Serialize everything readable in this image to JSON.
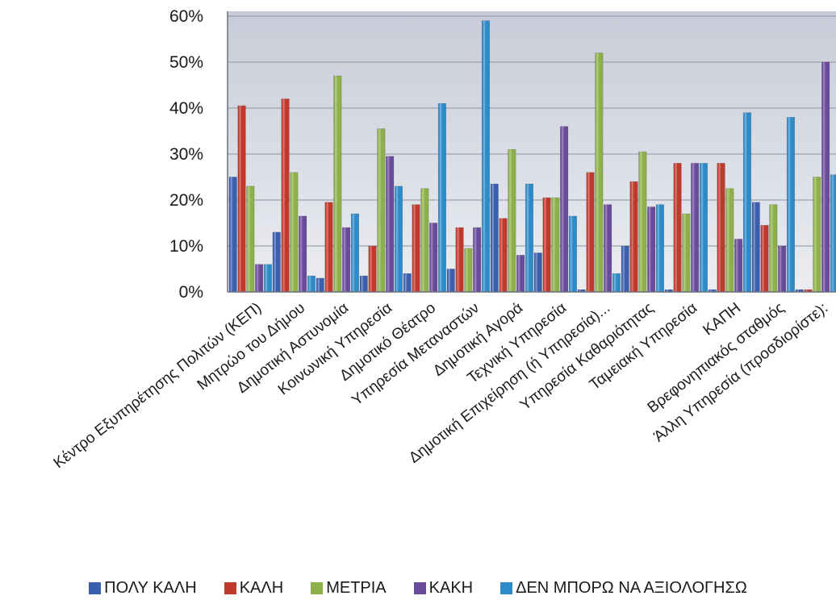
{
  "chart_data": {
    "type": "bar",
    "title": "",
    "xlabel": "",
    "ylabel": "",
    "ylim": [
      0,
      60
    ],
    "yticks": [
      "0%",
      "10%",
      "20%",
      "30%",
      "40%",
      "50%",
      "60%"
    ],
    "grid": true,
    "legend_position": "bottom",
    "categories": [
      "Κέντρο Εξυπηρέτησης Πολιτών (ΚΕΠ)",
      "Μητρώο του Δήμου",
      "Δημοτική Αστυνομία",
      "Κοινωνική Υπηρεσία",
      "Δημοτικό Θέατρο",
      "Υπηρεσία Μεταναστών",
      "Δημοτική Αγορά",
      "Τεχνική Υπηρεσία",
      "Δημοτική Επιχείρηση (ή Υπηρεσία)...",
      "Υπηρεσία Καθαριότητας",
      "Ταμειακή Υπηρεσία",
      "ΚΑΠΗ",
      "Βρεφονηπιακός σταθμός",
      "Άλλη Υπηρεσία (προσδιορίστε):"
    ],
    "series": [
      {
        "name": "ΠΟΛΥ ΚΑΛΗ",
        "color": "#3b5fb0",
        "values": [
          25,
          13,
          3,
          3.5,
          4,
          5,
          23.5,
          8.5,
          0.5,
          10,
          0.5,
          0.5,
          19.5,
          0.5
        ]
      },
      {
        "name": "ΚΑΛΗ",
        "color": "#c0392b",
        "values": [
          40.5,
          42,
          19.5,
          10,
          19,
          14,
          16,
          20.5,
          26,
          24,
          28,
          28,
          14.5,
          0.5
        ]
      },
      {
        "name": "ΜΕΤΡΙΑ",
        "color": "#8db04a",
        "values": [
          23,
          26,
          47,
          35.5,
          22.5,
          9.5,
          31,
          20.5,
          52,
          30.5,
          17,
          22.5,
          19,
          25
        ]
      },
      {
        "name": "ΚΑΚΗ",
        "color": "#6a4a9b",
        "values": [
          6,
          16.5,
          14,
          29.5,
          15,
          14,
          8,
          36,
          19,
          18.5,
          28,
          11.5,
          10,
          50
        ]
      },
      {
        "name": "ΔΕΝ ΜΠΟΡΩ ΝΑ ΑΞΙΟΛΟΓΗΣΩ",
        "color": "#2e8bc9",
        "values": [
          6,
          3.5,
          17,
          23,
          41,
          59,
          23.5,
          16.5,
          4,
          19,
          28,
          39,
          38,
          25.5
        ]
      }
    ]
  }
}
